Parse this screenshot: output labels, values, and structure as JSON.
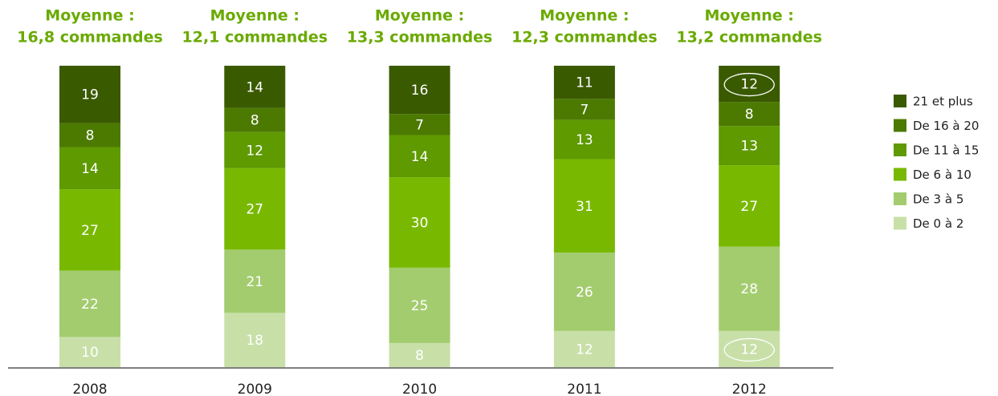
{
  "chart_data": {
    "type": "stacked-bar",
    "categories": [
      "2008",
      "2009",
      "2010",
      "2011",
      "2012"
    ],
    "annotations": [
      {
        "lines": [
          "Moyenne :",
          "16,8 commandes"
        ]
      },
      {
        "lines": [
          "Moyenne :",
          "12,1 commandes"
        ]
      },
      {
        "lines": [
          "Moyenne :",
          "13,3 commandes"
        ]
      },
      {
        "lines": [
          "Moyenne :",
          "12,3 commandes"
        ]
      },
      {
        "lines": [
          "Moyenne :",
          "13,2 commandes"
        ]
      }
    ],
    "series": [
      {
        "name": "De 0 à 2",
        "color": "#c8e0a8",
        "values": [
          10,
          18,
          8,
          12,
          12
        ]
      },
      {
        "name": "De 3 à 5",
        "color": "#a3cc6e",
        "values": [
          22,
          21,
          25,
          26,
          28
        ]
      },
      {
        "name": "De 6 à 10",
        "color": "#79b800",
        "values": [
          27,
          27,
          30,
          31,
          27
        ]
      },
      {
        "name": "De 11 à 15",
        "color": "#5e9a00",
        "values": [
          14,
          12,
          14,
          13,
          13
        ]
      },
      {
        "name": "De 16 à 20",
        "color": "#4c7a00",
        "values": [
          8,
          8,
          7,
          7,
          8
        ]
      },
      {
        "name": "21 et plus",
        "color": "#3a5a00",
        "values": [
          19,
          14,
          16,
          11,
          12
        ]
      }
    ],
    "circled": [
      {
        "series": 5,
        "category": 4
      },
      {
        "series": 0,
        "category": 4
      }
    ]
  }
}
